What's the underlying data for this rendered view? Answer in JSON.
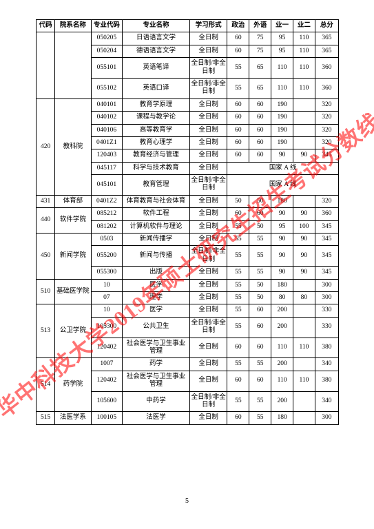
{
  "watermark": "华中科技大学2019年硕士研究生招生考试分数线",
  "page_number": "5",
  "headers": {
    "code": "代码",
    "dept": "院系名称",
    "mcode": "专业代码",
    "mname": "专业名称",
    "mode": "学习形式",
    "pol": "政治",
    "for": "外语",
    "b1": "业一",
    "b2": "业二",
    "total": "总分"
  },
  "national_line": "国家 A 线",
  "groups": [
    {
      "code": "",
      "dept": "",
      "rows": [
        {
          "mcode": "050205",
          "mname": "日语语言文学",
          "mode": "全日制",
          "s": [
            "60",
            "75",
            "95",
            "110",
            "365"
          ]
        },
        {
          "mcode": "050204",
          "mname": "德语语言文学",
          "mode": "全日制",
          "s": [
            "60",
            "75",
            "95",
            "110",
            "365"
          ]
        },
        {
          "mcode": "055101",
          "mname": "英语笔译",
          "mode": "全日制/非全日制",
          "s": [
            "55",
            "65",
            "110",
            "110",
            "360"
          ]
        },
        {
          "mcode": "055102",
          "mname": "英语口译",
          "mode": "全日制/非全日制",
          "s": [
            "55",
            "65",
            "110",
            "110",
            "360"
          ]
        }
      ]
    },
    {
      "code": "420",
      "dept": "教科院",
      "rows": [
        {
          "mcode": "040101",
          "mname": "教育学原理",
          "mode": "全日制",
          "s": [
            "60",
            "60",
            "190",
            "",
            "320"
          ]
        },
        {
          "mcode": "040102",
          "mname": "课程与教学论",
          "mode": "全日制",
          "s": [
            "60",
            "60",
            "190",
            "",
            "320"
          ]
        },
        {
          "mcode": "040106",
          "mname": "高等教育学",
          "mode": "全日制",
          "s": [
            "60",
            "60",
            "190",
            "",
            "320"
          ]
        },
        {
          "mcode": "0401Z1",
          "mname": "教育心理学",
          "mode": "全日制",
          "s": [
            "60",
            "60",
            "190",
            "",
            "320"
          ]
        },
        {
          "mcode": "120403",
          "mname": "教育经济与管理",
          "mode": "全日制",
          "s": [
            "60",
            "60",
            "90",
            "90",
            "345"
          ]
        },
        {
          "mcode": "045117",
          "mname": "科学与技术教育",
          "mode": "全日制",
          "s": null,
          "national": true
        },
        {
          "mcode": "045101",
          "mname": "教育管理",
          "mode": "全日制/非全日制",
          "s": null,
          "national": true
        }
      ]
    },
    {
      "code": "431",
      "dept": "体育部",
      "rows": [
        {
          "mcode": "0401Z2",
          "mname": "体育教育与社会体育",
          "mode": "全日制",
          "s": [
            "50",
            "50",
            "180",
            "",
            "320"
          ]
        }
      ]
    },
    {
      "code": "440",
      "dept": "软件学院",
      "rows": [
        {
          "mcode": "085212",
          "mname": "软件工程",
          "mode": "全日制",
          "s": [
            "60",
            "60",
            "90",
            "90",
            "360"
          ]
        },
        {
          "mcode": "081202",
          "mname": "计算机软件与理论",
          "mode": "全日制",
          "s": [
            "55",
            "50",
            "95",
            "100",
            "345"
          ]
        }
      ]
    },
    {
      "code": "450",
      "dept": "新闻学院",
      "rows": [
        {
          "mcode": "0503",
          "mname": "新闻传播学",
          "mode": "全日制",
          "s": [
            "55",
            "55",
            "90",
            "90",
            "345"
          ]
        },
        {
          "mcode": "055200",
          "mname": "新闻与传播",
          "mode": "全日制/非全日制",
          "s": [
            "55",
            "55",
            "90",
            "90",
            "345"
          ]
        },
        {
          "mcode": "055300",
          "mname": "出版",
          "mode": "全日制",
          "s": [
            "55",
            "55",
            "90",
            "90",
            "345"
          ]
        }
      ]
    },
    {
      "code": "510",
      "dept": "基础医学院",
      "rows": [
        {
          "mcode": "10",
          "mname": "医学",
          "mode": "全日制",
          "s": [
            "55",
            "50",
            "180",
            "",
            "300"
          ]
        },
        {
          "mcode": "07",
          "mname": "理学",
          "mode": "全日制",
          "s": [
            "55",
            "50",
            "80",
            "80",
            "300"
          ]
        }
      ]
    },
    {
      "code": "513",
      "dept": "公卫学院",
      "rows": [
        {
          "mcode": "10",
          "mname": "医学",
          "mode": "全日制",
          "s": [
            "55",
            "60",
            "200",
            "",
            "330"
          ]
        },
        {
          "mcode": "105300",
          "mname": "公共卫生",
          "mode": "全日制/非全日制",
          "s": [
            "55",
            "60",
            "200",
            "",
            "330"
          ]
        },
        {
          "mcode": "120402",
          "mname": "社会医学与卫生事业管理",
          "mode": "全日制",
          "s": [
            "60",
            "60",
            "110",
            "110",
            "380"
          ]
        }
      ]
    },
    {
      "code": "514",
      "dept": "药学院",
      "rows": [
        {
          "mcode": "1007",
          "mname": "药学",
          "mode": "全日制",
          "s": [
            "55",
            "55",
            "200",
            "",
            "340"
          ]
        },
        {
          "mcode": "120402",
          "mname": "社会医学与卫生事业管理",
          "mode": "全日制",
          "s": [
            "60",
            "60",
            "110",
            "110",
            "380"
          ]
        },
        {
          "mcode": "105600",
          "mname": "中药学",
          "mode": "全日制/非全日制",
          "s": [
            "55",
            "55",
            "200",
            "",
            "340"
          ]
        }
      ]
    },
    {
      "code": "515",
      "dept": "法医学系",
      "rows": [
        {
          "mcode": "100105",
          "mname": "法医学",
          "mode": "全日制",
          "s": [
            "60",
            "55",
            "180",
            "",
            "300"
          ]
        }
      ]
    }
  ]
}
